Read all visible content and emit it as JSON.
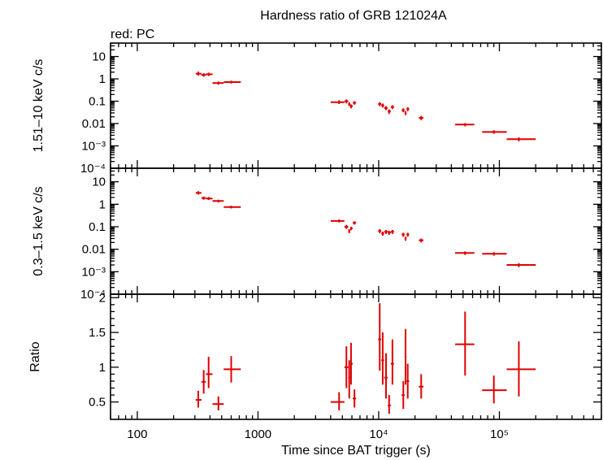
{
  "title": "Hardness ratio of GRB 121024A",
  "legend": "red: PC",
  "colors": {
    "data": "#e00000",
    "axes": "#000000"
  },
  "chart_data": [
    {
      "type": "scatter",
      "panel": "top",
      "ylabel": "1.51–10 keV c/s",
      "yscale": "log",
      "xscale": "log",
      "ylim": [
        0.0001,
        40
      ],
      "xlim": [
        60,
        700000
      ],
      "ytick_labels": [
        "10",
        "1",
        "0.1",
        "0.01",
        "10⁻³",
        "10⁻⁴"
      ],
      "points": [
        {
          "x": 320,
          "xlo": 305,
          "xhi": 340,
          "y": 1.7,
          "ylo": 1.4,
          "yhi": 2.1
        },
        {
          "x": 355,
          "xlo": 340,
          "xhi": 370,
          "y": 1.5,
          "ylo": 1.25,
          "yhi": 1.8
        },
        {
          "x": 390,
          "xlo": 370,
          "xhi": 420,
          "y": 1.6,
          "ylo": 1.35,
          "yhi": 1.9
        },
        {
          "x": 470,
          "xlo": 420,
          "xhi": 520,
          "y": 0.65,
          "ylo": 0.55,
          "yhi": 0.76
        },
        {
          "x": 600,
          "xlo": 520,
          "xhi": 720,
          "y": 0.72,
          "ylo": 0.62,
          "yhi": 0.83
        },
        {
          "x": 4700,
          "xlo": 4000,
          "xhi": 5200,
          "y": 0.09,
          "ylo": 0.075,
          "yhi": 0.11
        },
        {
          "x": 5400,
          "xlo": 5200,
          "xhi": 5600,
          "y": 0.1,
          "ylo": 0.08,
          "yhi": 0.12
        },
        {
          "x": 5700,
          "xlo": 5600,
          "xhi": 5800,
          "y": 0.075,
          "ylo": 0.06,
          "yhi": 0.09
        },
        {
          "x": 5900,
          "xlo": 5800,
          "xhi": 6100,
          "y": 0.06,
          "ylo": 0.048,
          "yhi": 0.072
        },
        {
          "x": 6300,
          "xlo": 6100,
          "xhi": 6500,
          "y": 0.085,
          "ylo": 0.07,
          "yhi": 0.1
        },
        {
          "x": 10200,
          "xlo": 9900,
          "xhi": 10500,
          "y": 0.075,
          "ylo": 0.06,
          "yhi": 0.09
        },
        {
          "x": 10800,
          "xlo": 10500,
          "xhi": 11100,
          "y": 0.065,
          "ylo": 0.052,
          "yhi": 0.078
        },
        {
          "x": 11500,
          "xlo": 11100,
          "xhi": 11900,
          "y": 0.05,
          "ylo": 0.04,
          "yhi": 0.06
        },
        {
          "x": 12200,
          "xlo": 11900,
          "xhi": 12600,
          "y": 0.035,
          "ylo": 0.027,
          "yhi": 0.043
        },
        {
          "x": 13000,
          "xlo": 12600,
          "xhi": 13400,
          "y": 0.055,
          "ylo": 0.045,
          "yhi": 0.066
        },
        {
          "x": 16000,
          "xlo": 15500,
          "xhi": 16400,
          "y": 0.04,
          "ylo": 0.032,
          "yhi": 0.048
        },
        {
          "x": 16700,
          "xlo": 16400,
          "xhi": 17000,
          "y": 0.03,
          "ylo": 0.024,
          "yhi": 0.036
        },
        {
          "x": 17400,
          "xlo": 17000,
          "xhi": 17900,
          "y": 0.045,
          "ylo": 0.036,
          "yhi": 0.054
        },
        {
          "x": 22500,
          "xlo": 21500,
          "xhi": 23500,
          "y": 0.018,
          "ylo": 0.014,
          "yhi": 0.022
        },
        {
          "x": 52000,
          "xlo": 43000,
          "xhi": 62000,
          "y": 0.009,
          "ylo": 0.0075,
          "yhi": 0.0105
        },
        {
          "x": 90000,
          "xlo": 72000,
          "xhi": 115000,
          "y": 0.0042,
          "ylo": 0.0035,
          "yhi": 0.005
        },
        {
          "x": 145000,
          "xlo": 115000,
          "xhi": 200000,
          "y": 0.002,
          "ylo": 0.0016,
          "yhi": 0.0024
        }
      ]
    },
    {
      "type": "scatter",
      "panel": "middle",
      "ylabel": "0.3–1.5 keV c/s",
      "yscale": "log",
      "xscale": "log",
      "ylim": [
        0.0001,
        40
      ],
      "xlim": [
        60,
        700000
      ],
      "ytick_labels": [
        "10",
        "1",
        "0.1",
        "0.01",
        "10⁻³",
        "10⁻⁴"
      ],
      "points": [
        {
          "x": 320,
          "xlo": 305,
          "xhi": 340,
          "y": 3.2,
          "ylo": 2.7,
          "yhi": 3.8
        },
        {
          "x": 355,
          "xlo": 340,
          "xhi": 370,
          "y": 1.9,
          "ylo": 1.6,
          "yhi": 2.2
        },
        {
          "x": 390,
          "xlo": 370,
          "xhi": 420,
          "y": 1.8,
          "ylo": 1.55,
          "yhi": 2.1
        },
        {
          "x": 470,
          "xlo": 420,
          "xhi": 520,
          "y": 1.4,
          "ylo": 1.2,
          "yhi": 1.6
        },
        {
          "x": 600,
          "xlo": 520,
          "xhi": 720,
          "y": 0.75,
          "ylo": 0.65,
          "yhi": 0.86
        },
        {
          "x": 4700,
          "xlo": 4000,
          "xhi": 5200,
          "y": 0.18,
          "ylo": 0.155,
          "yhi": 0.21
        },
        {
          "x": 5400,
          "xlo": 5200,
          "xhi": 5600,
          "y": 0.1,
          "ylo": 0.08,
          "yhi": 0.12
        },
        {
          "x": 5700,
          "xlo": 5600,
          "xhi": 5800,
          "y": 0.065,
          "ylo": 0.052,
          "yhi": 0.078
        },
        {
          "x": 5900,
          "xlo": 5800,
          "xhi": 6100,
          "y": 0.085,
          "ylo": 0.07,
          "yhi": 0.1
        },
        {
          "x": 6300,
          "xlo": 6100,
          "xhi": 6500,
          "y": 0.15,
          "ylo": 0.125,
          "yhi": 0.175
        },
        {
          "x": 10200,
          "xlo": 9900,
          "xhi": 10500,
          "y": 0.065,
          "ylo": 0.052,
          "yhi": 0.078
        },
        {
          "x": 10800,
          "xlo": 10500,
          "xhi": 11100,
          "y": 0.05,
          "ylo": 0.04,
          "yhi": 0.06
        },
        {
          "x": 11500,
          "xlo": 11100,
          "xhi": 11900,
          "y": 0.06,
          "ylo": 0.048,
          "yhi": 0.072
        },
        {
          "x": 12200,
          "xlo": 11900,
          "xhi": 12600,
          "y": 0.055,
          "ylo": 0.044,
          "yhi": 0.066
        },
        {
          "x": 13000,
          "xlo": 12600,
          "xhi": 13400,
          "y": 0.06,
          "ylo": 0.048,
          "yhi": 0.072
        },
        {
          "x": 16000,
          "xlo": 15500,
          "xhi": 16400,
          "y": 0.045,
          "ylo": 0.036,
          "yhi": 0.054
        },
        {
          "x": 16700,
          "xlo": 16400,
          "xhi": 17000,
          "y": 0.03,
          "ylo": 0.024,
          "yhi": 0.036
        },
        {
          "x": 17400,
          "xlo": 17000,
          "xhi": 17900,
          "y": 0.045,
          "ylo": 0.036,
          "yhi": 0.054
        },
        {
          "x": 22500,
          "xlo": 21500,
          "xhi": 23500,
          "y": 0.025,
          "ylo": 0.02,
          "yhi": 0.03
        },
        {
          "x": 52000,
          "xlo": 43000,
          "xhi": 62000,
          "y": 0.0068,
          "ylo": 0.0056,
          "yhi": 0.008
        },
        {
          "x": 90000,
          "xlo": 72000,
          "xhi": 115000,
          "y": 0.0063,
          "ylo": 0.0052,
          "yhi": 0.0074
        },
        {
          "x": 145000,
          "xlo": 115000,
          "xhi": 200000,
          "y": 0.002,
          "ylo": 0.0016,
          "yhi": 0.0024
        }
      ]
    },
    {
      "type": "scatter",
      "panel": "bottom",
      "ylabel": "Ratio",
      "xlabel": "Time since BAT trigger (s)",
      "yscale": "linear",
      "xscale": "log",
      "ylim": [
        0.25,
        2.05
      ],
      "xlim": [
        60,
        700000
      ],
      "yticks": [
        0.5,
        1,
        1.5,
        2
      ],
      "ytick_labels": [
        "0.5",
        "1",
        "1.5",
        "2"
      ],
      "xtick_values": [
        100,
        1000,
        10000,
        100000
      ],
      "xtick_labels": [
        "100",
        "1000",
        "10⁴",
        "10⁵"
      ],
      "points": [
        {
          "x": 320,
          "xlo": 305,
          "xhi": 340,
          "y": 0.53,
          "ylo": 0.42,
          "yhi": 0.66
        },
        {
          "x": 355,
          "xlo": 340,
          "xhi": 370,
          "y": 0.79,
          "ylo": 0.62,
          "yhi": 0.96
        },
        {
          "x": 390,
          "xlo": 370,
          "xhi": 420,
          "y": 0.9,
          "ylo": 0.7,
          "yhi": 1.15
        },
        {
          "x": 470,
          "xlo": 420,
          "xhi": 520,
          "y": 0.47,
          "ylo": 0.38,
          "yhi": 0.58
        },
        {
          "x": 600,
          "xlo": 520,
          "xhi": 720,
          "y": 0.97,
          "ylo": 0.78,
          "yhi": 1.16
        },
        {
          "x": 4700,
          "xlo": 4000,
          "xhi": 5200,
          "y": 0.5,
          "ylo": 0.38,
          "yhi": 0.64
        },
        {
          "x": 5400,
          "xlo": 5200,
          "xhi": 5600,
          "y": 1.0,
          "ylo": 0.7,
          "yhi": 1.3
        },
        {
          "x": 5700,
          "xlo": 5600,
          "xhi": 5800,
          "y": 0.85,
          "ylo": 0.55,
          "yhi": 1.1
        },
        {
          "x": 5900,
          "xlo": 5800,
          "xhi": 6100,
          "y": 1.05,
          "ylo": 0.75,
          "yhi": 1.35
        },
        {
          "x": 6300,
          "xlo": 6100,
          "xhi": 6500,
          "y": 0.55,
          "ylo": 0.42,
          "yhi": 0.68
        },
        {
          "x": 10200,
          "xlo": 9900,
          "xhi": 10500,
          "y": 1.4,
          "ylo": 0.95,
          "yhi": 1.92
        },
        {
          "x": 10800,
          "xlo": 10500,
          "xhi": 11100,
          "y": 1.1,
          "ylo": 0.75,
          "yhi": 1.5
        },
        {
          "x": 11500,
          "xlo": 11100,
          "xhi": 11900,
          "y": 0.85,
          "ylo": 0.55,
          "yhi": 1.2
        },
        {
          "x": 12200,
          "xlo": 11900,
          "xhi": 12600,
          "y": 0.45,
          "ylo": 0.33,
          "yhi": 0.6
        },
        {
          "x": 13000,
          "xlo": 12600,
          "xhi": 13400,
          "y": 1.05,
          "ylo": 0.75,
          "yhi": 1.4
        },
        {
          "x": 16000,
          "xlo": 15500,
          "xhi": 16400,
          "y": 0.6,
          "ylo": 0.4,
          "yhi": 0.8
        },
        {
          "x": 16700,
          "xlo": 16400,
          "xhi": 17000,
          "y": 1.15,
          "ylo": 0.75,
          "yhi": 1.55
        },
        {
          "x": 17400,
          "xlo": 17000,
          "xhi": 17900,
          "y": 0.8,
          "ylo": 0.55,
          "yhi": 1.05
        },
        {
          "x": 22500,
          "xlo": 21500,
          "xhi": 23500,
          "y": 0.72,
          "ylo": 0.55,
          "yhi": 0.9
        },
        {
          "x": 52000,
          "xlo": 43000,
          "xhi": 62000,
          "y": 1.33,
          "ylo": 0.88,
          "yhi": 1.8
        },
        {
          "x": 90000,
          "xlo": 72000,
          "xhi": 115000,
          "y": 0.67,
          "ylo": 0.48,
          "yhi": 0.88
        },
        {
          "x": 145000,
          "xlo": 115000,
          "xhi": 200000,
          "y": 0.97,
          "ylo": 0.58,
          "yhi": 1.37
        }
      ]
    }
  ]
}
